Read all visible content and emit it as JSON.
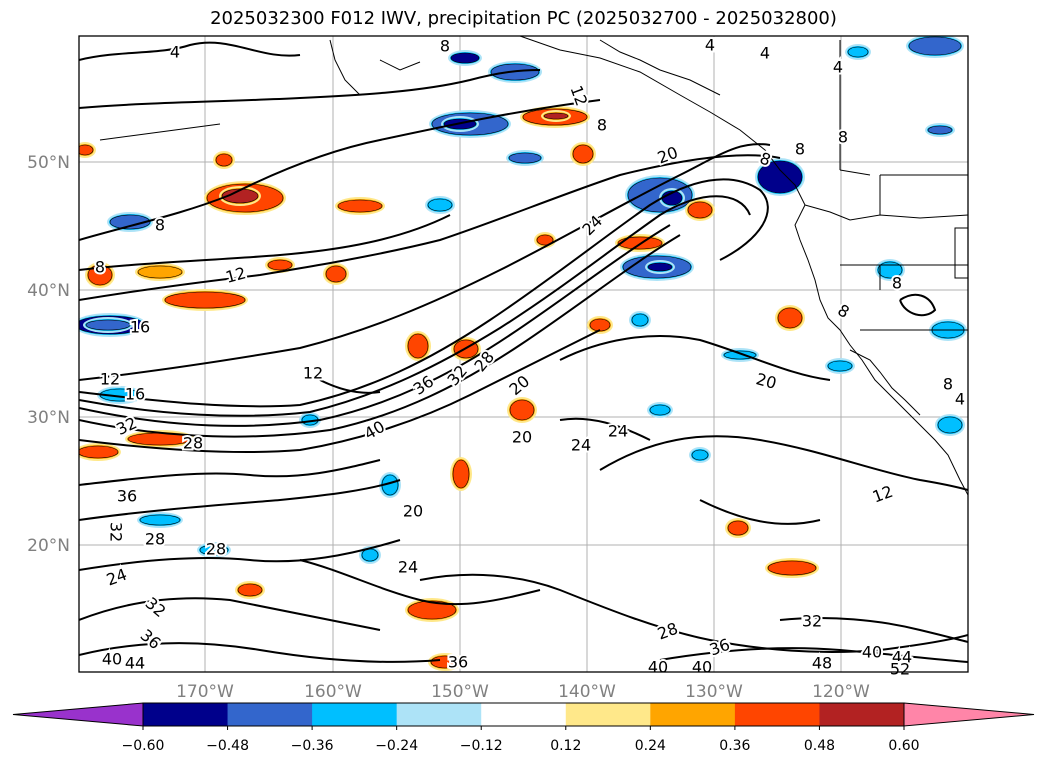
{
  "title": "2025032300 F012 IWV, precipitation PC (2025032700 - 2025032800)",
  "map": {
    "lat_labels": [
      "50°N",
      "40°N",
      "30°N",
      "20°N"
    ],
    "lon_labels": [
      "170°W",
      "160°W",
      "150°W",
      "140°W",
      "130°W",
      "120°W"
    ],
    "label_color": "#808080"
  },
  "contour_labels": [
    {
      "text": "4"
    },
    {
      "text": "8"
    },
    {
      "text": "12"
    },
    {
      "text": "16"
    },
    {
      "text": "20"
    },
    {
      "text": "24"
    },
    {
      "text": "28"
    },
    {
      "text": "32"
    },
    {
      "text": "36"
    },
    {
      "text": "40"
    },
    {
      "text": "44"
    },
    {
      "text": "48"
    },
    {
      "text": "52"
    }
  ],
  "colorbar": {
    "tick_labels": [
      "−0.60",
      "−0.48",
      "−0.36",
      "−0.24",
      "−0.12",
      "0.12",
      "0.24",
      "0.36",
      "0.48",
      "0.60"
    ],
    "colors": [
      "#9932CC",
      "#00008B",
      "#3366CC",
      "#00BFFF",
      "#ADE3F7",
      "#FFFFFF",
      "#FFE88A",
      "#FFA500",
      "#FF4500",
      "#B22222",
      "#FF85A8"
    ]
  }
}
